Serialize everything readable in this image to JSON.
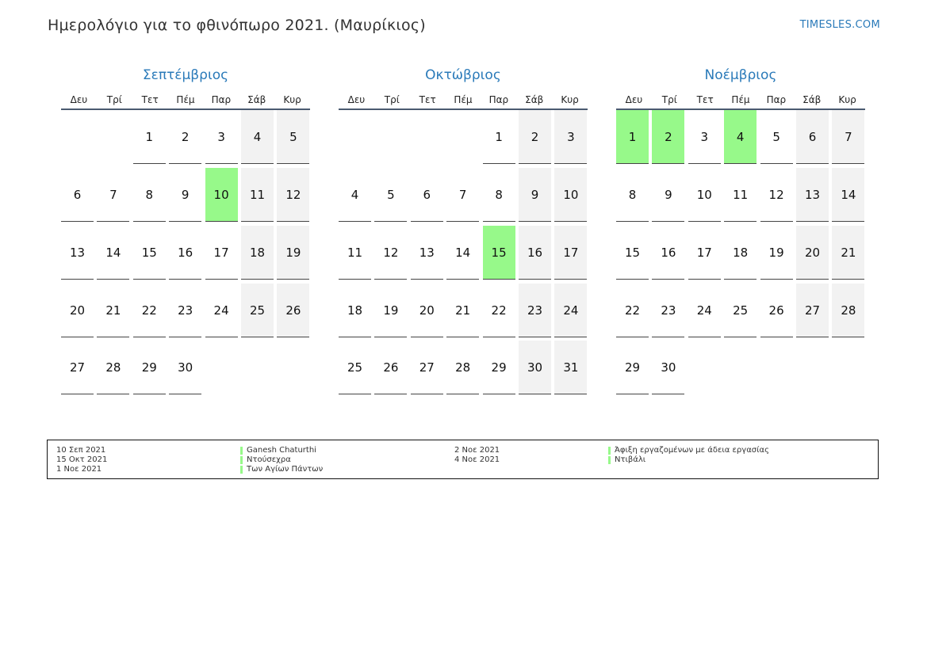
{
  "header": {
    "title": "Ημερολόγιο για το φθινόπωρο 2021. (Μαυρίκιος)",
    "brand": "TIMESLES.COM"
  },
  "colors": {
    "accent": "#2a7ab9",
    "holiday": "#97f98a",
    "weekend": "#f2f2f2"
  },
  "weekdays": [
    "Δευ",
    "Τρί",
    "Τετ",
    "Πέμ",
    "Παρ",
    "Σάβ",
    "Κυρ"
  ],
  "months": [
    {
      "name": "Σεπτέμβριος",
      "first_weekday_index": 2,
      "days": 30,
      "holidays": [
        10
      ]
    },
    {
      "name": "Οκτώβριος",
      "first_weekday_index": 4,
      "days": 31,
      "holidays": [
        15
      ]
    },
    {
      "name": "Νοέμβριος",
      "first_weekday_index": 0,
      "days": 30,
      "holidays": [
        1,
        2,
        4
      ]
    }
  ],
  "legend": [
    {
      "date": "10 Σεπ 2021",
      "name": "Ganesh Chaturthi"
    },
    {
      "date": "15 Οκτ 2021",
      "name": "Ντούσεχρα"
    },
    {
      "date": "1 Νοε 2021",
      "name": "Των Αγίων Πάντων"
    },
    {
      "date": "2 Νοε 2021",
      "name": "Άφιξη εργαζομένων με άδεια εργασίας"
    },
    {
      "date": "4 Νοε 2021",
      "name": "Ντιβάλι"
    }
  ]
}
